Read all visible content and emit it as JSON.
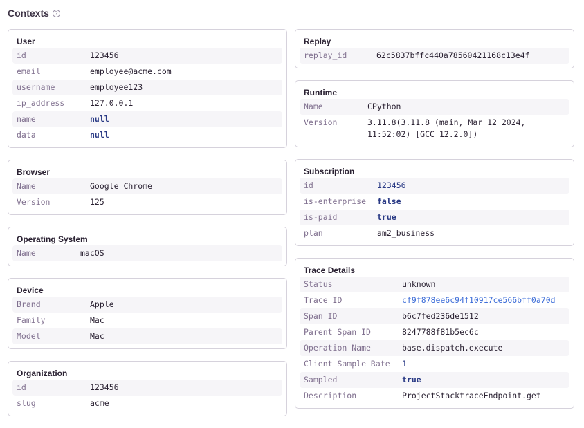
{
  "title": "Contexts",
  "help_icon": "question-circle-icon",
  "left": [
    {
      "title": "User",
      "kw": 106,
      "rows": [
        [
          "id",
          "123456",
          ""
        ],
        [
          "email",
          "employee@acme.com",
          ""
        ],
        [
          "username",
          "employee123",
          ""
        ],
        [
          "ip_address",
          "127.0.0.1",
          ""
        ],
        [
          "name",
          "null",
          "kw"
        ],
        [
          "data",
          "null",
          "kw"
        ]
      ]
    },
    {
      "title": "Browser",
      "kw": 106,
      "rows": [
        [
          "Name",
          "Google Chrome",
          ""
        ],
        [
          "Version",
          "125",
          ""
        ]
      ]
    },
    {
      "title": "Operating System",
      "kw": 92,
      "rows": [
        [
          "Name",
          "macOS",
          ""
        ]
      ]
    },
    {
      "title": "Device",
      "kw": 106,
      "rows": [
        [
          "Brand",
          "Apple",
          ""
        ],
        [
          "Family",
          "Mac",
          ""
        ],
        [
          "Model",
          "Mac",
          ""
        ]
      ]
    },
    {
      "title": "Organization",
      "kw": 106,
      "rows": [
        [
          "id",
          "123456",
          ""
        ],
        [
          "slug",
          "acme",
          ""
        ]
      ]
    }
  ],
  "right": [
    {
      "title": "Replay",
      "kw": 105,
      "rows": [
        [
          "replay_id",
          "62c5837bffc440a78560421168c13e4f",
          ""
        ]
      ]
    },
    {
      "title": "Runtime",
      "kw": 92,
      "rows": [
        [
          "Name",
          "CPython",
          ""
        ],
        [
          "Version",
          "3.11.8(3.11.8 (main, Mar 12 2024, 11:52:02) [GCC 12.2.0])",
          ""
        ]
      ]
    },
    {
      "title": "Subscription",
      "kw": 106,
      "rows": [
        [
          "id",
          "123456",
          "num"
        ],
        [
          "is-enterprise",
          "false",
          "kw"
        ],
        [
          "is-paid",
          "true",
          "kw"
        ],
        [
          "plan",
          "am2_business",
          ""
        ]
      ]
    },
    {
      "title": "Trace Details",
      "kw": 142,
      "rows": [
        [
          "Status",
          "unknown",
          ""
        ],
        [
          "Trace ID",
          "cf9f878ee6c94f10917ce566bff0a70d",
          "link"
        ],
        [
          "Span ID",
          "b6c7fed236de1512",
          ""
        ],
        [
          "Parent Span ID",
          "8247788f81b5ec6c",
          ""
        ],
        [
          "Operation Name",
          "base.dispatch.execute",
          ""
        ],
        [
          "Client Sample Rate",
          "1",
          "num"
        ],
        [
          "Sampled",
          "true",
          "kw"
        ],
        [
          "Description",
          "ProjectStacktraceEndpoint.get",
          ""
        ]
      ]
    }
  ]
}
